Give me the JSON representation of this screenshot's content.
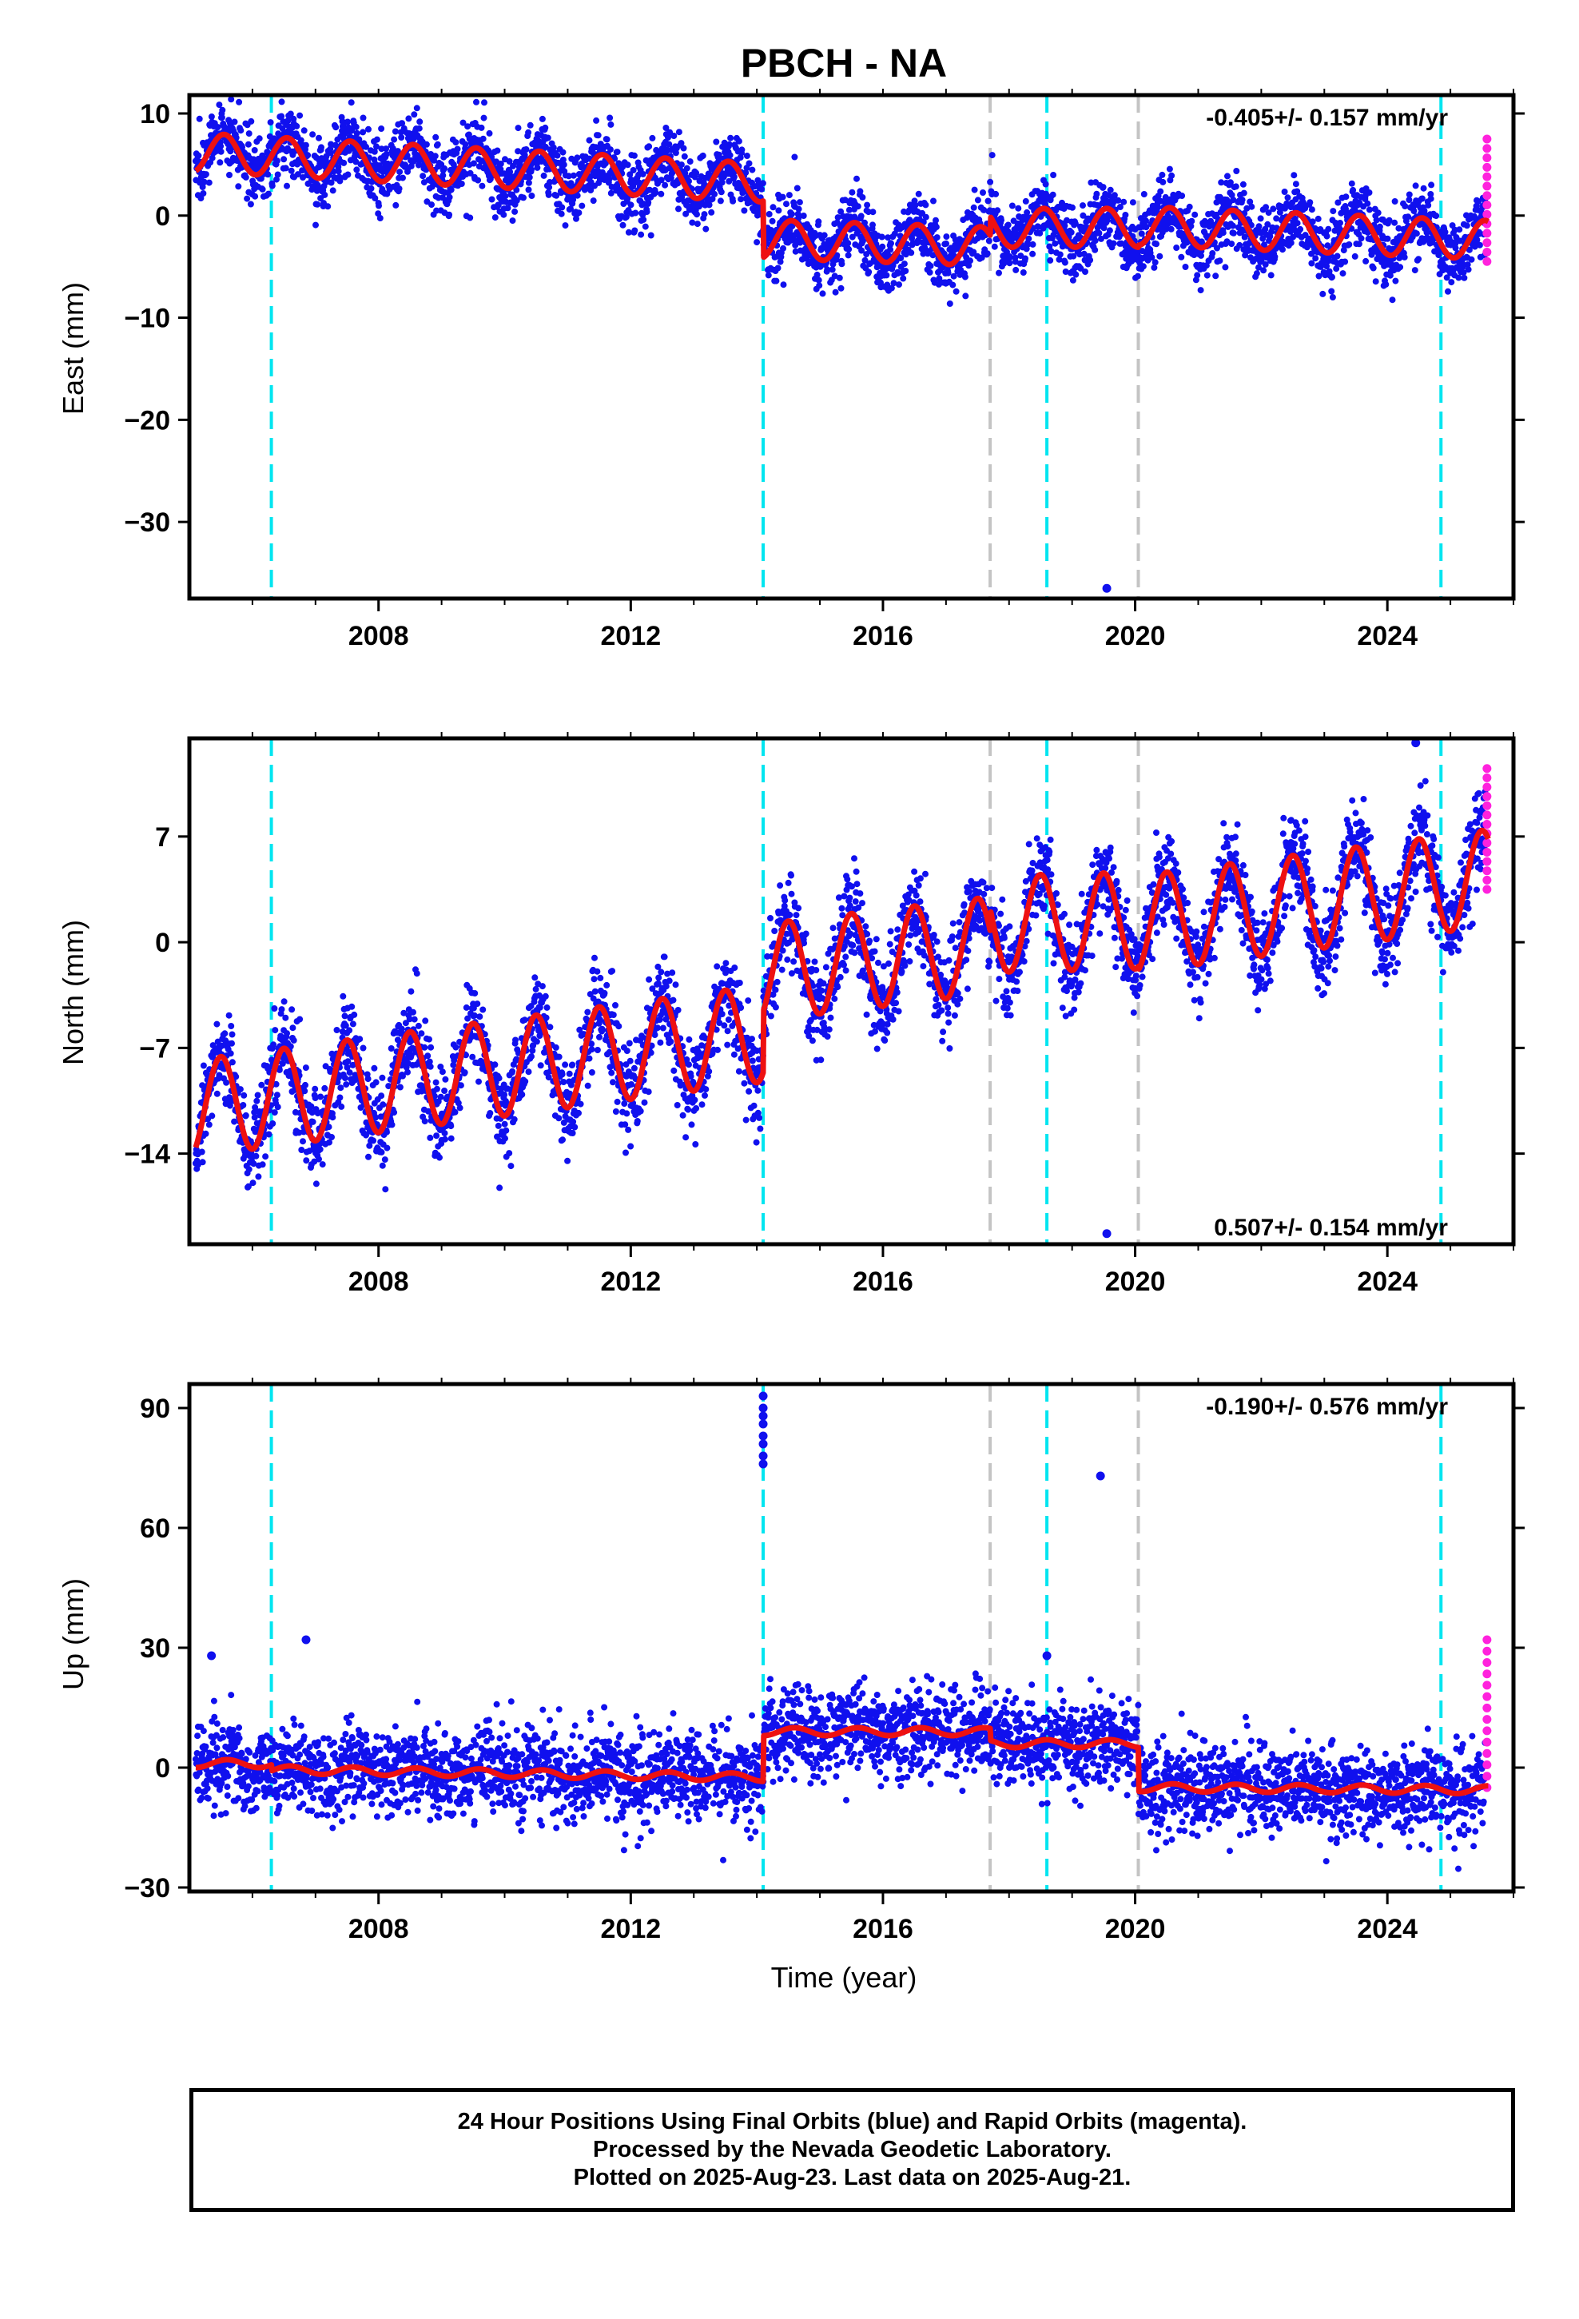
{
  "chart_data": {
    "type": "scatter",
    "title": "PBCH - NA",
    "xlabel": "Time (year)",
    "xlim": [
      2005.0,
      2026.0
    ],
    "x_ticks": [
      2008,
      2012,
      2016,
      2020,
      2024
    ],
    "colors": {
      "final_orbits": "#1010ee",
      "rapid_orbits": "#ff22dd",
      "model_fit": "#ee1111",
      "equipment_change": "#00e5f0",
      "other_event": "#c4c4c4"
    },
    "event_lines": {
      "cyan": [
        2006.3,
        2014.1,
        2018.6,
        2024.85
      ],
      "gray": [
        2017.7,
        2020.05
      ]
    },
    "panels": [
      {
        "name": "east",
        "ylabel": "East (mm)",
        "ylim": [
          -37.5,
          11.8
        ],
        "yticks": [
          10,
          0,
          -10,
          -20,
          -30
        ],
        "rate_text": "-0.405+/- 0.157 mm/yr",
        "rate_position": "top-right",
        "model": {
          "segments": [
            {
              "start": 2005.1,
              "end": 2014.1,
              "offset": 6.2,
              "slope": -0.33
            },
            {
              "start": 2014.1,
              "end": 2017.7,
              "offset": -2.3,
              "slope": -0.2
            },
            {
              "start": 2017.7,
              "end": 2020.05,
              "offset": -1.2,
              "slope": 0.0
            },
            {
              "start": 2020.05,
              "end": 2025.6,
              "offset": -1.0,
              "slope": -0.25
            }
          ],
          "amplitude": 1.9,
          "peak_phase": 0.55,
          "noise": 1.7
        },
        "outliers_final": [
          {
            "x": 2019.55,
            "y": -36.5
          }
        ],
        "rapid": {
          "x": 2025.58,
          "min": -4.5,
          "max": 7.5
        }
      },
      {
        "name": "north",
        "ylabel": "North (mm)",
        "ylim": [
          -20,
          13.5
        ],
        "yticks": [
          7,
          0,
          -7,
          -14
        ],
        "rate_text": "0.507+/- 0.154 mm/yr",
        "rate_position": "bottom-right",
        "model": {
          "segments": [
            {
              "start": 2005.1,
              "end": 2014.1,
              "offset": -11.0,
              "slope": 0.55
            },
            {
              "start": 2014.1,
              "end": 2017.7,
              "offset": -2.0,
              "slope": 0.5
            },
            {
              "start": 2017.7,
              "end": 2020.05,
              "offset": 1.2,
              "slope": 0.1
            },
            {
              "start": 2020.05,
              "end": 2025.6,
              "offset": 1.2,
              "slope": 0.55
            }
          ],
          "amplitude": 3.2,
          "peak_phase": 0.5,
          "noise": 1.5
        },
        "outliers_final": [
          {
            "x": 2019.55,
            "y": -19.3
          },
          {
            "x": 2024.45,
            "y": 13.2
          }
        ],
        "rapid": {
          "x": 2025.58,
          "min": 3.5,
          "max": 11.5
        }
      },
      {
        "name": "up",
        "ylabel": "Up (mm)",
        "ylim": [
          -31,
          96
        ],
        "yticks": [
          90,
          60,
          30,
          0,
          -30
        ],
        "rate_text": "-0.190+/- 0.576 mm/yr",
        "rate_position": "top-right",
        "model": {
          "segments": [
            {
              "start": 2005.1,
              "end": 2006.3,
              "offset": 1.0,
              "slope": 0.0
            },
            {
              "start": 2006.3,
              "end": 2014.1,
              "offset": -0.5,
              "slope": -0.25
            },
            {
              "start": 2014.1,
              "end": 2017.7,
              "offset": 9.0,
              "slope": 0.0
            },
            {
              "start": 2017.7,
              "end": 2020.05,
              "offset": 6.0,
              "slope": 0.0
            },
            {
              "start": 2020.05,
              "end": 2025.6,
              "offset": -5.0,
              "slope": -0.1
            }
          ],
          "amplitude": 1.0,
          "peak_phase": 0.6,
          "noise": 5.5
        },
        "outliers_final": [
          {
            "x": 2014.1,
            "y": 93
          },
          {
            "x": 2014.1,
            "y": 90
          },
          {
            "x": 2014.1,
            "y": 88
          },
          {
            "x": 2014.1,
            "y": 86
          },
          {
            "x": 2014.1,
            "y": 83
          },
          {
            "x": 2014.1,
            "y": 81
          },
          {
            "x": 2014.1,
            "y": 78
          },
          {
            "x": 2014.1,
            "y": 76
          },
          {
            "x": 2019.45,
            "y": 73
          },
          {
            "x": 2005.35,
            "y": 28
          },
          {
            "x": 2006.85,
            "y": 32
          },
          {
            "x": 2018.6,
            "y": 28
          }
        ],
        "rapid": {
          "x": 2025.58,
          "min": -5,
          "max": 32
        }
      }
    ]
  },
  "footer": {
    "line1": "24 Hour Positions Using Final Orbits (blue) and Rapid Orbits (magenta).",
    "line2": "Processed by the Nevada Geodetic Laboratory.",
    "line3": "Plotted on 2025-Aug-23. Last data on 2025-Aug-21."
  }
}
